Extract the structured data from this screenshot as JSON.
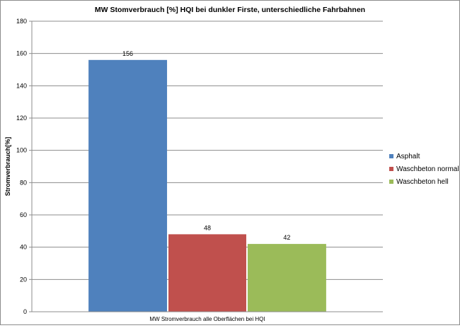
{
  "chart_data": {
    "type": "bar",
    "title": "MW Stomverbrauch [%] HQI bei dunkler Firste, unterschiedliche Fahrbahnen",
    "ylabel": "Stromverbrauch[%]",
    "categories": [
      "MW Stromverbrauch alle Oberflächen bei HQI"
    ],
    "series": [
      {
        "name": "Asphalt",
        "values": [
          156
        ],
        "color": "#4f81bd"
      },
      {
        "name": "Waschbeton normal",
        "values": [
          48
        ],
        "color": "#c0504d"
      },
      {
        "name": "Waschbeton hell",
        "values": [
          42
        ],
        "color": "#9bbb59"
      }
    ],
    "ylim": [
      0,
      180
    ],
    "yticks": [
      0,
      20,
      40,
      60,
      80,
      100,
      120,
      140,
      160,
      180
    ],
    "grid": true,
    "legend_position": "right",
    "data_labels": true
  }
}
